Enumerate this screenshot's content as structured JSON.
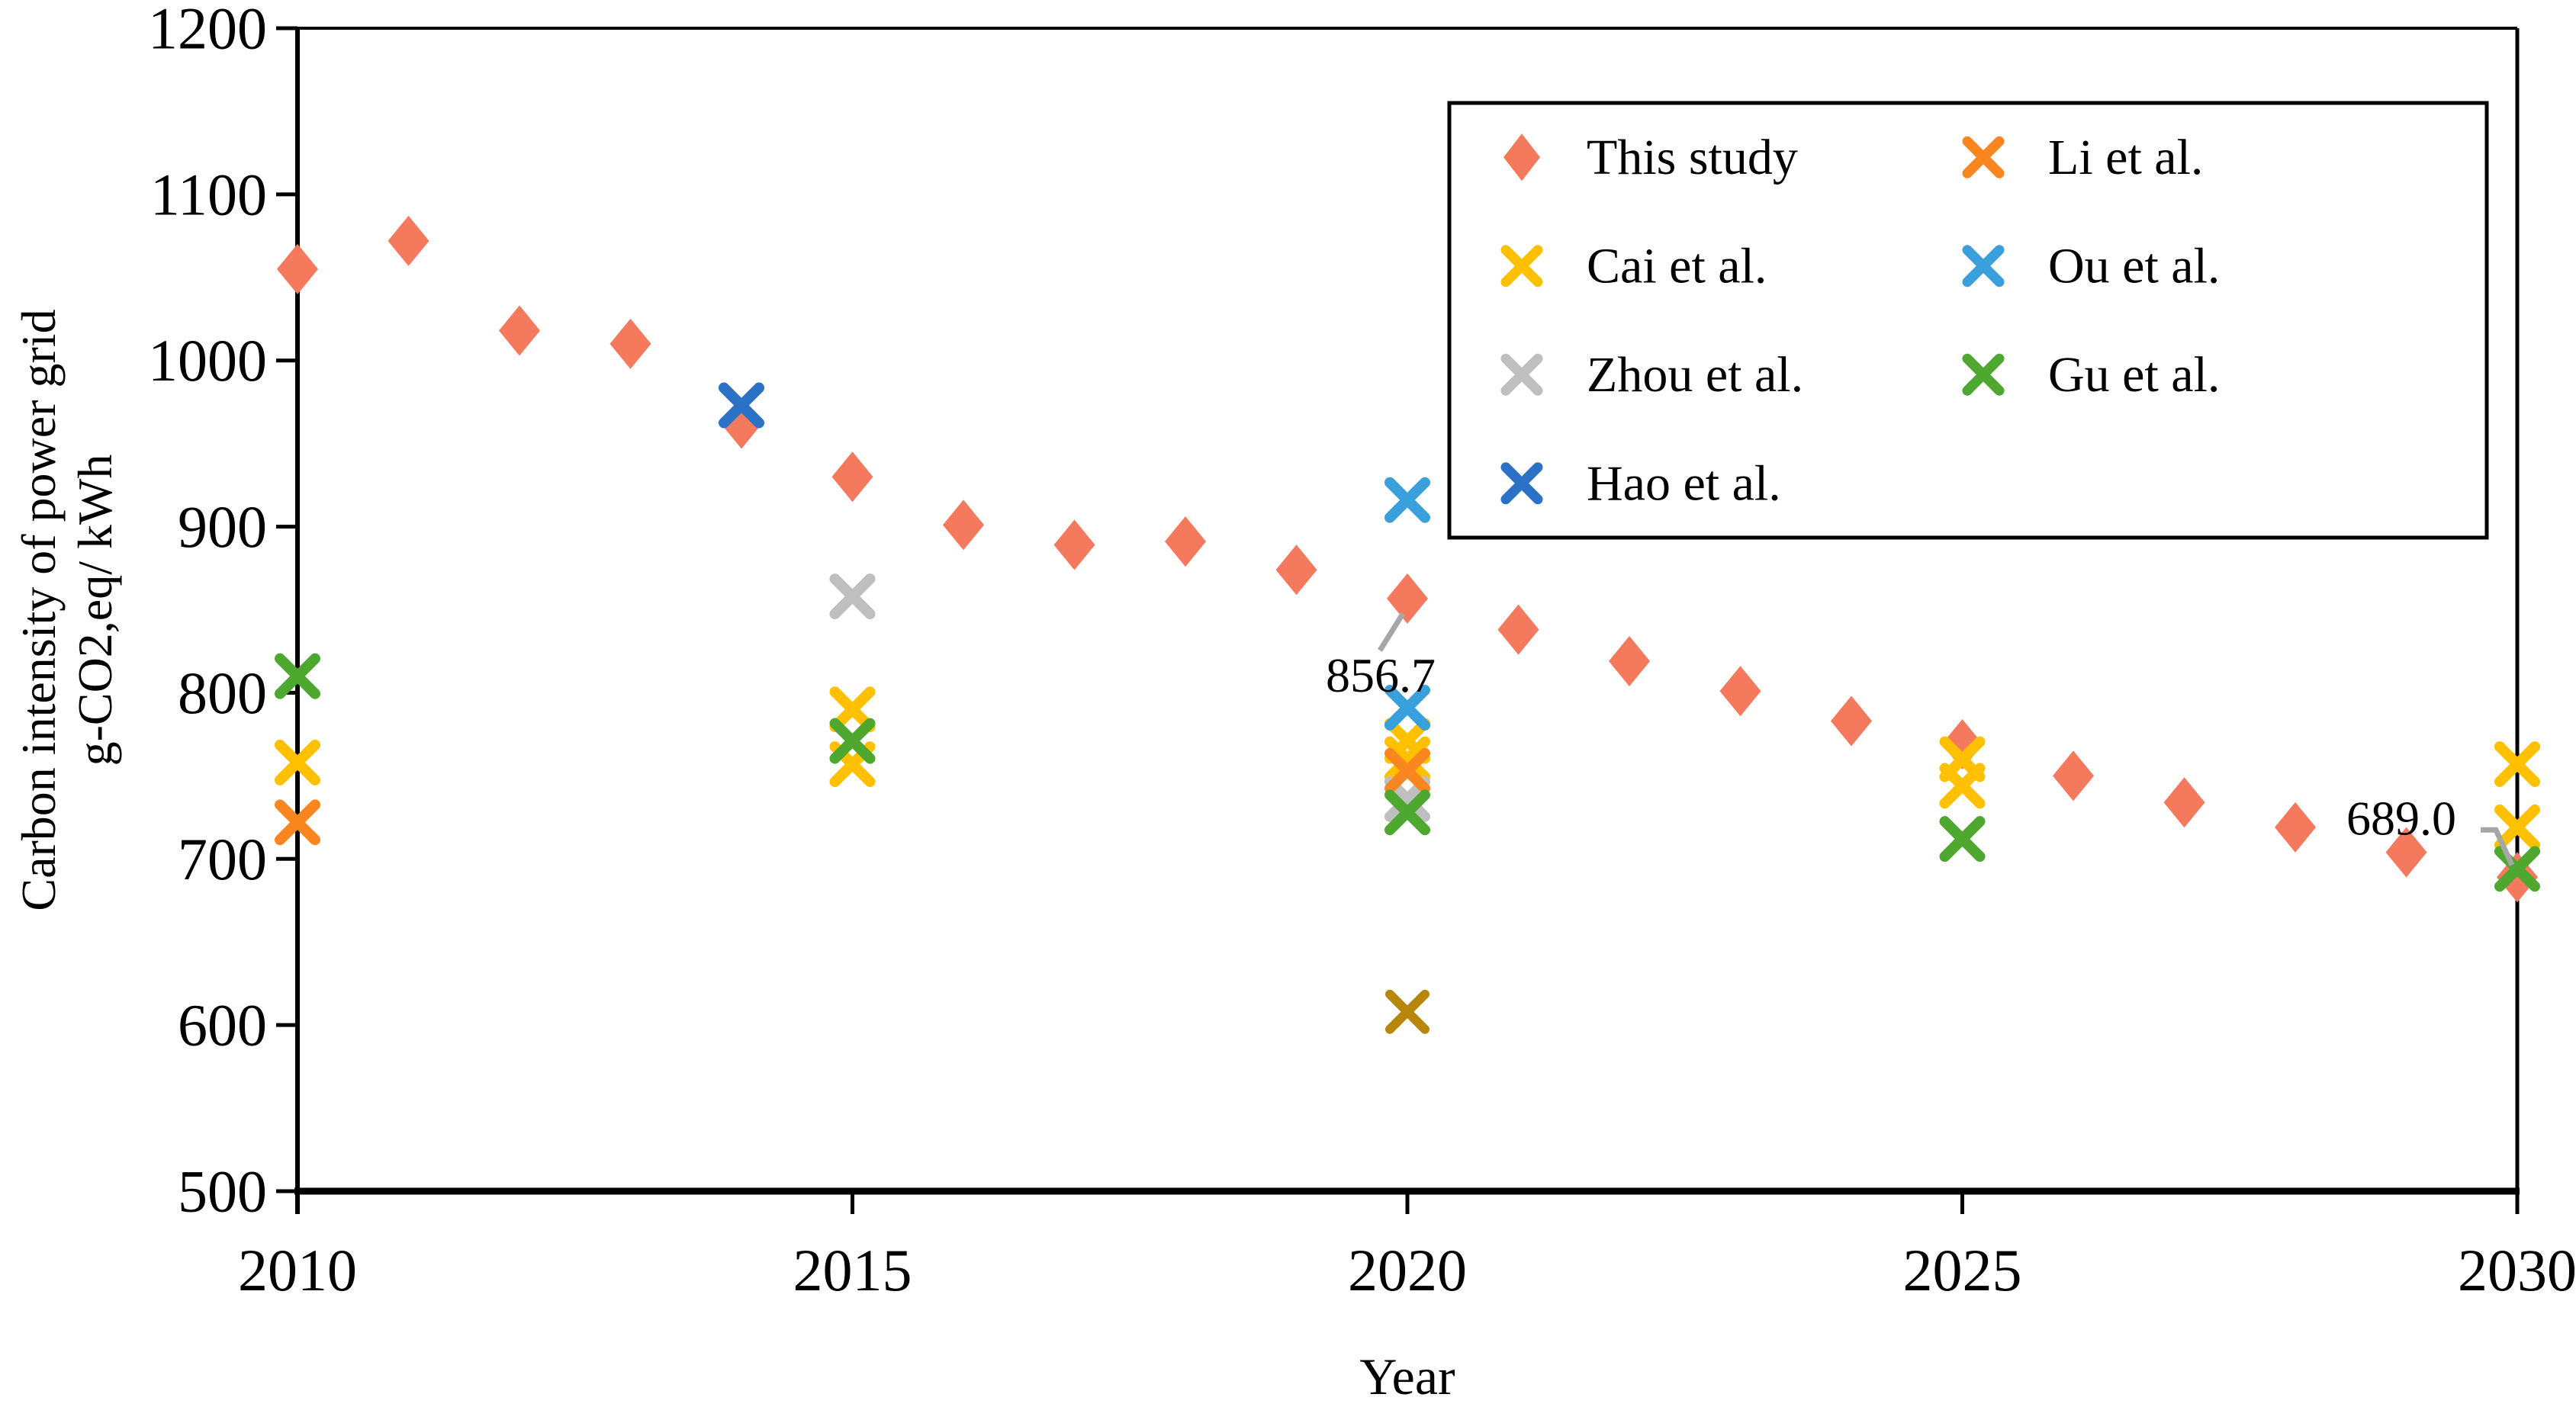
{
  "chart_data": {
    "type": "scatter",
    "title": "",
    "xlabel": "Year",
    "ylabel_line1": "Carbon intensity of power grid",
    "ylabel_line2": "g-CO2,eq/ kWh",
    "xlim": [
      2010,
      2030
    ],
    "ylim": [
      500,
      1200
    ],
    "xticks": [
      2010,
      2015,
      2020,
      2025,
      2030
    ],
    "yticks": [
      500,
      600,
      700,
      800,
      900,
      1000,
      1100,
      1200
    ],
    "grid": false,
    "axis_color": "#000000",
    "leader_line_color": "#A6A6A6",
    "series": [
      {
        "name": "This study",
        "marker": "diamond",
        "color": "#F5795D",
        "points": [
          [
            2010,
            1055
          ],
          [
            2011,
            1072
          ],
          [
            2012,
            1018
          ],
          [
            2013,
            1010
          ],
          [
            2014,
            962
          ],
          [
            2015,
            930
          ],
          [
            2016,
            901
          ],
          [
            2017,
            889
          ],
          [
            2018,
            891
          ],
          [
            2019,
            874
          ],
          [
            2020,
            856.7
          ],
          [
            2021,
            838
          ],
          [
            2022,
            819
          ],
          [
            2023,
            801
          ],
          [
            2024,
            783
          ],
          [
            2025,
            769
          ],
          [
            2026,
            750
          ],
          [
            2027,
            734
          ],
          [
            2028,
            719
          ],
          [
            2029,
            704
          ],
          [
            2030,
            689
          ]
        ]
      },
      {
        "name": "Cai et al.",
        "marker": "x",
        "color": "#FFC000",
        "points": [
          [
            2010,
            758
          ],
          [
            2015,
            790
          ],
          [
            2015,
            757
          ],
          [
            2020,
            771
          ],
          [
            2020,
            760
          ],
          [
            2025,
            760
          ],
          [
            2025,
            744
          ],
          [
            2030,
            757
          ],
          [
            2030,
            719
          ]
        ]
      },
      {
        "name": "Zhou et al.",
        "marker": "x",
        "color": "#BFBFBF",
        "points": [
          [
            2015,
            858
          ],
          [
            2020,
            736
          ]
        ]
      },
      {
        "name": "Hao et al.",
        "marker": "x",
        "color": "#2B72C7",
        "points": [
          [
            2014,
            973
          ]
        ]
      },
      {
        "name": "Li et al.",
        "marker": "x",
        "color": "#F9861E",
        "points": [
          [
            2010,
            722
          ],
          [
            2020,
            753
          ]
        ]
      },
      {
        "name": "Ou et al.",
        "marker": "x",
        "color": "#3AA0DC",
        "points": [
          [
            2020,
            916
          ],
          [
            2020,
            791
          ]
        ]
      },
      {
        "name": "Gu et al.",
        "marker": "x",
        "color": "#4EA72E",
        "points": [
          [
            2010,
            810
          ],
          [
            2015,
            771
          ],
          [
            2020,
            728
          ],
          [
            2025,
            712
          ],
          [
            2030,
            694
          ]
        ]
      }
    ],
    "unlabeled_points": [
      {
        "marker": "x",
        "color": "#B8860B",
        "x": 2020,
        "y": 608
      }
    ],
    "annotations": [
      {
        "text": "856.7",
        "x": 2020,
        "y": 856.7,
        "text_dx": -35,
        "text_dy": 122,
        "leader": [
          [
            -6,
            20
          ],
          [
            -36,
            68
          ]
        ]
      },
      {
        "text": "689.0",
        "x": 2030,
        "y": 689,
        "text_dx": -152,
        "text_dy": -56,
        "leader": [
          [
            -48,
            -62
          ],
          [
            -28,
            -62
          ],
          [
            -7,
            -16
          ]
        ]
      }
    ],
    "legend": {
      "position": "top-right",
      "columns": [
        [
          "This study",
          "Cai et al.",
          "Zhou et al.",
          "Hao et al."
        ],
        [
          "Li et al.",
          "Ou et al.",
          "Gu et al."
        ]
      ]
    }
  }
}
